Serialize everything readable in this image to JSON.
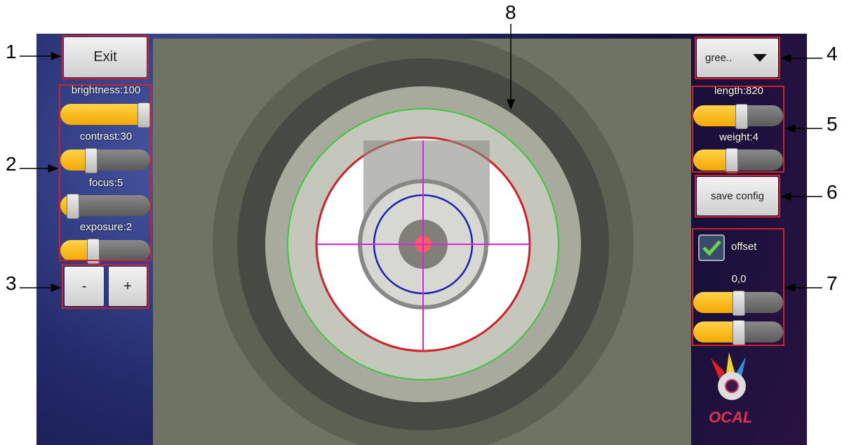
{
  "callouts": [
    "1",
    "2",
    "3",
    "4",
    "5",
    "6",
    "7",
    "8"
  ],
  "left_panel": {
    "exit_button": "Exit",
    "sliders": [
      {
        "label": "brightness:100"
      },
      {
        "label": "contrast:30"
      },
      {
        "label": "focus:5"
      },
      {
        "label": "exposure:2"
      }
    ],
    "minus_button": "-",
    "plus_button": "+"
  },
  "right_panel": {
    "color_dropdown": "gree..",
    "sliders": [
      {
        "label": "length:820"
      },
      {
        "label": "weight:4"
      }
    ],
    "save_button": "save config",
    "offset_checkbox": "offset",
    "offset_value": "0,0"
  },
  "logo": "OCAL"
}
